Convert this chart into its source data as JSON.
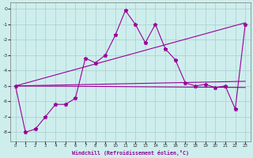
{
  "xlabel": "Windchill (Refroidissement éolien,°C)",
  "bg_color": "#ceeeed",
  "grid_color": "#aacccc",
  "line_color": "#990099",
  "xlim": [
    -0.5,
    23.5
  ],
  "ylim": [
    -8.6,
    0.4
  ],
  "yticks": [
    0,
    -1,
    -2,
    -3,
    -4,
    -5,
    -6,
    -7,
    -8
  ],
  "xticks": [
    0,
    1,
    2,
    3,
    4,
    5,
    6,
    7,
    8,
    9,
    10,
    11,
    12,
    13,
    14,
    15,
    16,
    17,
    18,
    19,
    20,
    21,
    22,
    23
  ],
  "series1_x": [
    0,
    1,
    2,
    3,
    4,
    5,
    6,
    7,
    8,
    9,
    10,
    11,
    12,
    13,
    14,
    15,
    16,
    17,
    18,
    19,
    20,
    21,
    22,
    23
  ],
  "series1_y": [
    -5.0,
    -8.0,
    -7.8,
    -7.0,
    -6.2,
    -6.2,
    -5.8,
    -3.2,
    -3.5,
    -3.0,
    -1.7,
    -0.1,
    -1.0,
    -2.2,
    -1.0,
    -2.6,
    -3.3,
    -4.8,
    -5.0,
    -4.9,
    -5.1,
    -5.0,
    -6.5,
    -1.0
  ],
  "line2_x": [
    0,
    23
  ],
  "line2_y": [
    -5.0,
    -0.9
  ],
  "line3_x": [
    0,
    23
  ],
  "line3_y": [
    -5.0,
    -4.7
  ],
  "line4_x": [
    0,
    23
  ],
  "line4_y": [
    -5.0,
    -5.1
  ]
}
